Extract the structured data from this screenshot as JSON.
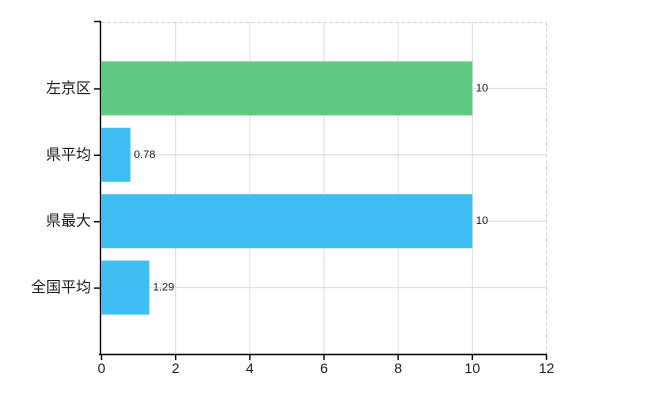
{
  "chart_data": {
    "type": "bar",
    "orientation": "horizontal",
    "title": "",
    "xlabel": "",
    "ylabel": "",
    "categories": [
      "左京区",
      "県平均",
      "県最大",
      "全国平均"
    ],
    "values": [
      10,
      0.78,
      10,
      1.29
    ],
    "value_labels": [
      "10",
      "0.78",
      "10",
      "1.29"
    ],
    "bar_colors": [
      "#62c982",
      "#3dc0f1",
      "#3dc0f1",
      "#3dc0f1"
    ],
    "xlim": [
      0,
      12
    ],
    "x_ticks": [
      0,
      2,
      4,
      6,
      8,
      10,
      12
    ],
    "x_tick_labels": [
      "0",
      "2",
      "4",
      "6",
      "8",
      "10",
      "12"
    ],
    "grid": true,
    "legend": false,
    "colors": {
      "grid": "#dcdcdc",
      "dashed_border": "#d6d6d6",
      "axis": "#000000",
      "tick_text": "#1a1a1a",
      "category_text": "#1a1a1a",
      "value_text": "#1a1a1a",
      "background": "#ffffff"
    }
  }
}
